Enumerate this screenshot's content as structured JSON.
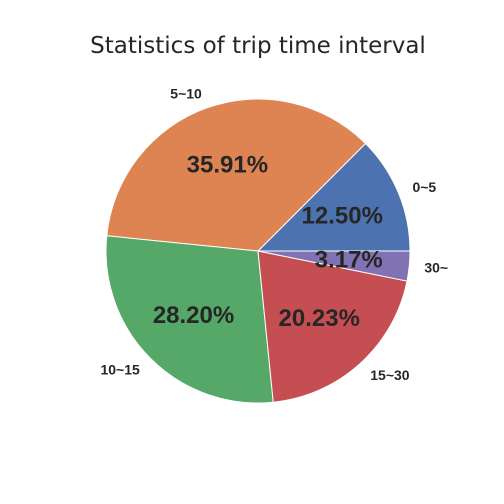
{
  "chart_data": {
    "type": "pie",
    "title": "Statistics of trip time interval",
    "categories": [
      "0~5",
      "5~10",
      "10~15",
      "15~30",
      "30~"
    ],
    "values": [
      12.5,
      35.91,
      28.2,
      20.23,
      3.17
    ],
    "value_labels": [
      "12.50%",
      "35.91%",
      "28.20%",
      "20.23%",
      "3.17%"
    ],
    "colors": [
      "#4c72b0",
      "#dd8452",
      "#55a868",
      "#c44e52",
      "#8172b3"
    ],
    "start_angle": "0 degrees (3 o'clock), counterclockwise",
    "legend": "none (labels on slices)"
  }
}
